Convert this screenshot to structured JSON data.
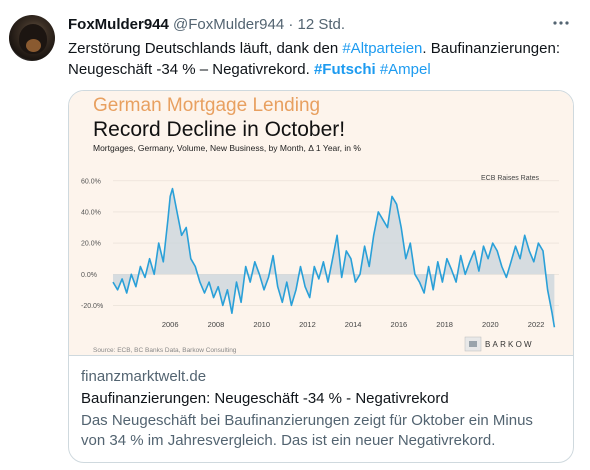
{
  "tweet": {
    "display_name": "FoxMulder944",
    "handle": "@FoxMulder944",
    "separator": "·",
    "time": "12 Std.",
    "more_icon": "more-horizontal-icon",
    "text_part1": "Zerstörung Deutschlands läuft, dank den ",
    "hashtag1": "#Altparteien",
    "text_part2": ". Baufinanzierungen: Neugeschäft -34 % – Negativrekord. ",
    "hashtag2": "#Futschi",
    "text_space": " ",
    "hashtag3": "#Ampel"
  },
  "card": {
    "domain": "finanzmarktwelt.de",
    "title": "Baufinanzierungen: Neugeschäft -34 % - Negativrekord",
    "description": "Das Neugeschäft bei Baufinanzierungen zeigt für Oktober ein Minus von 34 % im Jahresvergleich. Das ist ein neuer Negativrekord."
  },
  "image": {
    "title1": "German Mortgage Lending",
    "title2": "Record Decline in October!",
    "subtitle": "Mortgages, Germany, Volume, New Business, by Month,  Δ 1 Year, in %",
    "annotation": "ECB Raises Rates",
    "source": "Source: ECB, BC Banks Data, Barkow Consulting",
    "logo_text": "BARKOW",
    "colors": {
      "title1": "#e8a060",
      "line": "#2aa0d8",
      "fill": "#c8d4dc",
      "background": "#fdf4ec"
    }
  },
  "chart_data": {
    "type": "area",
    "title": "German Mortgage Lending",
    "subtitle": "Mortgages, Germany, Volume, New Business, by Month,  Δ 1 Year, in %",
    "xlabel": "",
    "ylabel": "",
    "ylim": [
      -30,
      65
    ],
    "xlim": [
      2003.5,
      2023.0
    ],
    "y_ticks": [
      "60.0%",
      "40.0%",
      "20.0%",
      "0.0%",
      "-20.0%"
    ],
    "y_tick_values": [
      60,
      40,
      20,
      0,
      -20
    ],
    "x_ticks": [
      "2006",
      "2008",
      "2010",
      "2012",
      "2014",
      "2016",
      "2018",
      "2020",
      "2022"
    ],
    "x_tick_values": [
      2006,
      2008,
      2010,
      2012,
      2014,
      2016,
      2018,
      2020,
      2022
    ],
    "series": [
      {
        "x": [
          2003.5,
          2003.7,
          2003.9,
          2004.1,
          2004.3,
          2004.5,
          2004.7,
          2004.9,
          2005.1,
          2005.3,
          2005.5,
          2005.7,
          2005.9,
          2006.0,
          2006.1,
          2006.3,
          2006.5,
          2006.7,
          2006.9,
          2007.1,
          2007.3,
          2007.5,
          2007.7,
          2007.9,
          2008.1,
          2008.3,
          2008.5,
          2008.7,
          2008.9,
          2009.1,
          2009.3,
          2009.5,
          2009.7,
          2009.9,
          2010.1,
          2010.3,
          2010.5,
          2010.7,
          2010.9,
          2011.1,
          2011.3,
          2011.5,
          2011.7,
          2011.9,
          2012.1,
          2012.3,
          2012.5,
          2012.7,
          2012.9,
          2013.1,
          2013.3,
          2013.5,
          2013.7,
          2013.9,
          2014.1,
          2014.3,
          2014.5,
          2014.7,
          2014.9,
          2015.1,
          2015.3,
          2015.5,
          2015.7,
          2015.9,
          2016.1,
          2016.3,
          2016.5,
          2016.7,
          2016.9,
          2017.1,
          2017.3,
          2017.5,
          2017.7,
          2017.9,
          2018.1,
          2018.3,
          2018.5,
          2018.7,
          2018.9,
          2019.1,
          2019.3,
          2019.5,
          2019.7,
          2019.9,
          2020.1,
          2020.3,
          2020.5,
          2020.7,
          2020.9,
          2021.1,
          2021.3,
          2021.5,
          2021.7,
          2021.9,
          2022.1,
          2022.3,
          2022.5,
          2022.7,
          2022.8
        ],
        "values": [
          -5,
          -10,
          -3,
          -12,
          0,
          -8,
          5,
          -2,
          10,
          0,
          20,
          8,
          35,
          50,
          55,
          40,
          25,
          30,
          10,
          5,
          -5,
          -12,
          -5,
          -15,
          -8,
          -20,
          -10,
          -25,
          -5,
          -18,
          5,
          -5,
          8,
          0,
          -10,
          -2,
          12,
          -8,
          -18,
          -5,
          -20,
          -10,
          5,
          -8,
          -15,
          5,
          -3,
          8,
          -5,
          10,
          25,
          -2,
          15,
          10,
          -5,
          0,
          18,
          5,
          25,
          40,
          35,
          30,
          50,
          45,
          30,
          10,
          20,
          0,
          -5,
          -12,
          5,
          -10,
          8,
          -5,
          10,
          3,
          -5,
          12,
          0,
          8,
          15,
          2,
          18,
          10,
          20,
          15,
          5,
          -2,
          8,
          18,
          10,
          25,
          15,
          8,
          20,
          15,
          -10,
          -25,
          -34
        ]
      }
    ]
  }
}
